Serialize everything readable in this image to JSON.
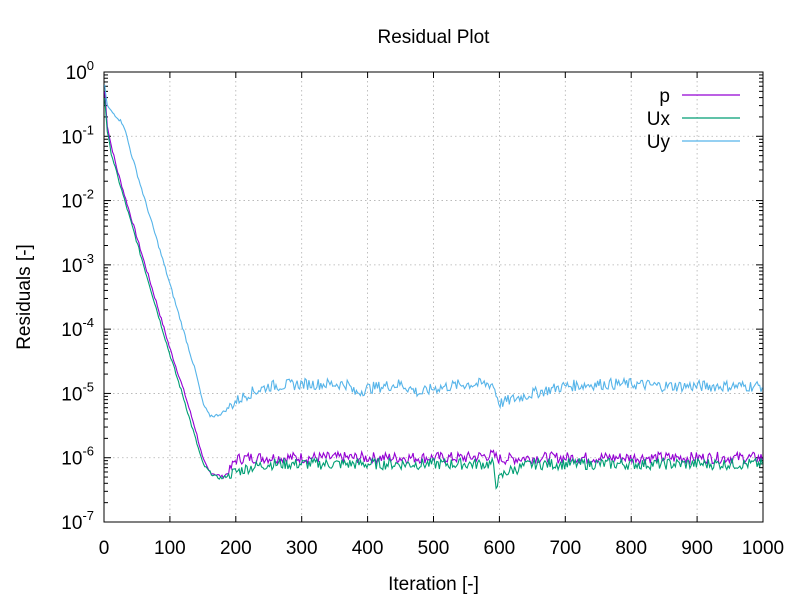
{
  "chart_data": {
    "type": "line",
    "title": "Residual Plot",
    "xlabel": "Iteration [-]",
    "ylabel": "Residuals [-]",
    "xlim": [
      0,
      1000
    ],
    "ylim": [
      1e-07,
      1
    ],
    "yscale": "log",
    "grid": true,
    "legend_position": "top-right",
    "x_ticks": [
      0,
      100,
      200,
      300,
      400,
      500,
      600,
      700,
      800,
      900,
      1000
    ],
    "x_tick_labels": [
      "0",
      "100",
      "200",
      "300",
      "400",
      "500",
      "600",
      "700",
      "800",
      "900",
      "1000"
    ],
    "y_ticks": [
      {
        "value": 1,
        "base": "10",
        "exp": "0"
      },
      {
        "value": 0.1,
        "base": "10",
        "exp": "-1"
      },
      {
        "value": 0.01,
        "base": "10",
        "exp": "-2"
      },
      {
        "value": 0.001,
        "base": "10",
        "exp": "-3"
      },
      {
        "value": 0.0001,
        "base": "10",
        "exp": "-4"
      },
      {
        "value": 1e-05,
        "base": "10",
        "exp": "-5"
      },
      {
        "value": 1e-06,
        "base": "10",
        "exp": "-6"
      },
      {
        "value": 1e-07,
        "base": "10",
        "exp": "-7"
      }
    ],
    "series": [
      {
        "name": "p",
        "color": "#9400d3",
        "x": [
          1,
          5,
          10,
          20,
          40,
          60,
          80,
          100,
          120,
          130,
          140,
          150,
          160,
          170,
          180,
          190,
          200,
          220,
          250,
          300,
          350,
          400,
          450,
          500,
          550,
          590,
          600,
          650,
          700,
          750,
          800,
          850,
          900,
          950,
          1000
        ],
        "y": [
          0.5,
          0.15,
          0.08,
          0.03,
          0.006,
          0.0012,
          0.00025,
          5e-05,
          1.2e-05,
          5.5e-06,
          2.5e-06,
          9.5e-07,
          6e-07,
          5.5e-07,
          5e-07,
          6e-07,
          9.5e-07,
          1e-06,
          1e-06,
          1e-06,
          1e-06,
          1e-06,
          1e-06,
          1e-06,
          1e-06,
          1.1e-06,
          9.5e-07,
          1e-06,
          1e-06,
          1e-06,
          1e-06,
          1e-06,
          1e-06,
          1e-06,
          1e-06
        ]
      },
      {
        "name": "Ux",
        "color": "#009e73",
        "x": [
          1,
          5,
          10,
          20,
          40,
          60,
          80,
          100,
          120,
          130,
          140,
          150,
          160,
          170,
          180,
          190,
          200,
          220,
          250,
          300,
          350,
          400,
          450,
          500,
          550,
          590,
          595,
          610,
          650,
          700,
          750,
          800,
          850,
          900,
          950,
          1000
        ],
        "y": [
          0.4,
          0.12,
          0.06,
          0.025,
          0.005,
          0.001,
          0.0002,
          4e-05,
          9e-06,
          4e-06,
          1.8e-06,
          8e-07,
          6e-07,
          5e-07,
          4.8e-07,
          5.5e-07,
          6e-07,
          7e-07,
          8e-07,
          8e-07,
          8e-07,
          8e-07,
          8e-07,
          8e-07,
          8e-07,
          8e-07,
          4e-07,
          6e-07,
          8e-07,
          8e-07,
          8e-07,
          8e-07,
          8e-07,
          8e-07,
          8e-07,
          8e-07
        ]
      },
      {
        "name": "Uy",
        "color": "#56b4e9",
        "x": [
          1,
          5,
          10,
          20,
          30,
          40,
          60,
          80,
          100,
          120,
          140,
          150,
          160,
          170,
          180,
          200,
          220,
          250,
          300,
          350,
          370,
          380,
          400,
          450,
          480,
          500,
          550,
          590,
          600,
          650,
          700,
          750,
          800,
          850,
          900,
          950,
          1000
        ],
        "y": [
          0.6,
          0.3,
          0.25,
          0.2,
          0.15,
          0.06,
          0.012,
          0.0025,
          0.0005,
          0.0001,
          2e-05,
          7e-06,
          4.5e-06,
          4.5e-06,
          5e-06,
          7.5e-06,
          1e-05,
          1.3e-05,
          1.4e-05,
          1.4e-05,
          1.4e-05,
          1e-05,
          1.2e-05,
          1.4e-05,
          1e-05,
          1.2e-05,
          1.4e-05,
          1.4e-05,
          7e-06,
          1e-05,
          1.3e-05,
          1.4e-05,
          1.4e-05,
          1.3e-05,
          1.3e-05,
          1.3e-05,
          1.3e-05
        ]
      }
    ]
  }
}
